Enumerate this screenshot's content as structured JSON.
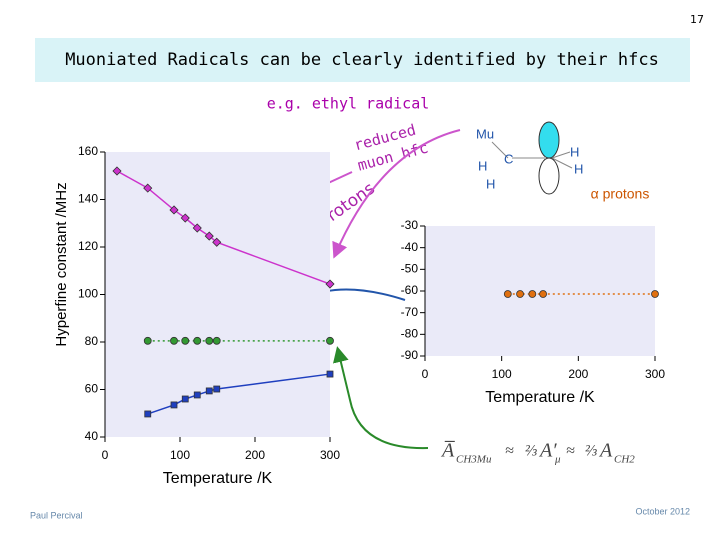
{
  "slide": {
    "page_number": "17",
    "title": "Muoniated Radicals can be clearly identified by their hfcs",
    "subtitle": "e.g. ethyl radical",
    "annotations": {
      "reduced": "reduced",
      "muon_hfc": "muon hfc",
      "beta_protons": "β protons",
      "alpha_protons": "α protons"
    },
    "molecule": {
      "mu": "Mu",
      "h1": "H",
      "c": "C",
      "h2": "H",
      "h3": "H",
      "h4": "H"
    },
    "formula": {
      "a1": "A̅",
      "a1_sub": "CH3Mu",
      "approx1": "≈",
      "two_thirds_1": "⅔",
      "a2": "A′",
      "a2_sub": "μ",
      "approx2": "≈",
      "two_thirds_2": "⅔",
      "a3": "A",
      "a3_sub": "CH2"
    },
    "author": "Paul Percival",
    "date": "October 2012"
  },
  "chart_data": [
    {
      "type": "line",
      "ylabel": "Hyperfine constant /MHz",
      "xlabel": "Temperature /K",
      "xlim": [
        0,
        300
      ],
      "xticks": [
        0,
        100,
        200,
        300
      ],
      "ylim": [
        40,
        160
      ],
      "yticks": [
        40,
        60,
        80,
        100,
        120,
        140,
        160
      ],
      "series": [
        {
          "color": "#cc33cc",
          "marker": "diamond",
          "line": "solid",
          "x": [
            16,
            57,
            92,
            107,
            123,
            139,
            149,
            300
          ],
          "values": [
            152,
            144.8,
            135.6,
            132.2,
            128,
            124.6,
            122,
            104.4
          ]
        },
        {
          "color": "#339933",
          "marker": "circle",
          "line": "dotted",
          "x": [
            57,
            92,
            107,
            123,
            139,
            149,
            300
          ],
          "values": [
            80.5,
            80.5,
            80.5,
            80.5,
            80.5,
            80.5,
            80.5
          ]
        },
        {
          "color": "#1f3fbf",
          "marker": "square",
          "line": "solid",
          "x": [
            57,
            92,
            107,
            123,
            139,
            149,
            300
          ],
          "values": [
            49.7,
            53.5,
            56,
            57.7,
            59.4,
            60.2,
            66.5
          ]
        }
      ]
    },
    {
      "type": "line",
      "xlabel": "Temperature /K",
      "xlim": [
        0,
        300
      ],
      "xticks": [
        0,
        100,
        200,
        300
      ],
      "ylim": [
        -90,
        -30
      ],
      "yticks": [
        -90,
        -80,
        -70,
        -60,
        -50,
        -40,
        -30
      ],
      "series": [
        {
          "color": "#e07010",
          "marker": "circle",
          "line": "dotted",
          "x": [
            108,
            124,
            140,
            154,
            300
          ],
          "values": [
            -61.4,
            -61.4,
            -61.4,
            -61.4,
            -61.4
          ]
        }
      ]
    }
  ]
}
